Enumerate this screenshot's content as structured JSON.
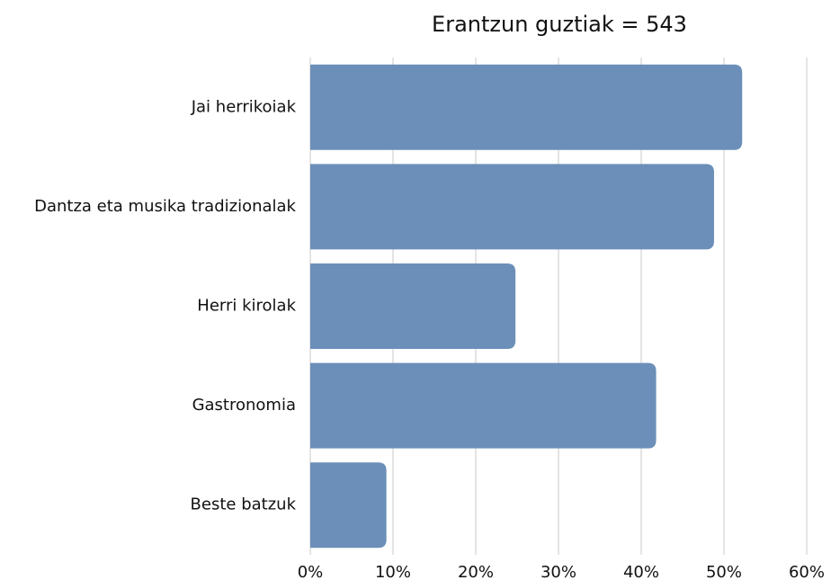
{
  "chart_data": {
    "type": "bar",
    "orientation": "horizontal",
    "title": "Erantzun guztiak = 543",
    "categories": [
      "Jai herrikoiak",
      "Dantza eta musika tradizionalak",
      "Herri kirolak",
      "Gastronomia",
      "Beste batzuk"
    ],
    "values": [
      52.2,
      48.8,
      24.8,
      41.8,
      9.2
    ],
    "color": "#6b8fb8",
    "xlim": [
      0,
      60
    ],
    "xticks": [
      {
        "value": 0,
        "label": "0%"
      },
      {
        "value": 10,
        "label": "10%"
      },
      {
        "value": 20,
        "label": "20%"
      },
      {
        "value": 30,
        "label": "30%"
      },
      {
        "value": 40,
        "label": "40%"
      },
      {
        "value": 50,
        "label": "50%"
      },
      {
        "value": 60,
        "label": "60%"
      }
    ],
    "grid": true
  }
}
